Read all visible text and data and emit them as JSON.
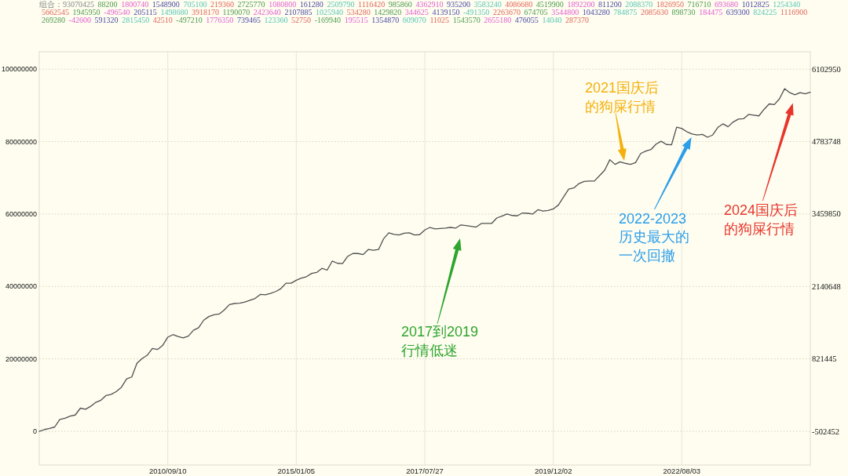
{
  "chart_data": {
    "type": "line",
    "title": "组合：93070425 88200 1800740 1548900 705100 219360 2725770 1080800 161280 2509790 1116420 985860 4362910 935200 3583240 4086680 4519900 1892200 811200 2088370 1826950 716710 693680 1012825 1254340 5662545 1945950 -496540 205115 1498680 3918170 1190070 2423640 2107885 1025940 534280 1429820 344625 4139150 -491350 2263670 674705 3544800 1043280 784875 2085630 898730 184475 639300 824225 1116900 269280 -42600 591320 2815450 42510 -497210 1776350 739465 123360 52750 -169940 195515 1354870 609070 11025 1543570 2655180 476055 14040 287370",
    "categories": [
      null,
      null,
      null,
      null,
      null,
      null,
      null,
      null,
      null,
      null,
      null,
      null,
      null,
      null,
      null,
      null,
      null,
      null,
      null,
      null,
      null,
      null,
      null,
      null,
      null,
      "2010/09/10",
      null,
      null,
      null,
      null,
      null,
      null,
      null,
      null,
      null,
      null,
      null,
      null,
      null,
      null,
      null,
      null,
      null,
      null,
      null,
      null,
      null,
      null,
      null,
      null,
      "2015/01/05",
      null,
      null,
      null,
      null,
      null,
      null,
      null,
      null,
      null,
      null,
      null,
      null,
      null,
      null,
      null,
      null,
      null,
      null,
      null,
      null,
      null,
      null,
      null,
      null,
      "2017/07/27",
      null,
      null,
      null,
      null,
      null,
      null,
      null,
      null,
      null,
      null,
      null,
      null,
      null,
      null,
      null,
      null,
      null,
      null,
      null,
      null,
      null,
      null,
      null,
      null,
      "2019/12/02",
      null,
      null,
      null,
      null,
      null,
      null,
      null,
      null,
      null,
      null,
      null,
      null,
      null,
      null,
      null,
      null,
      null,
      null,
      null,
      null,
      null,
      null,
      null,
      null,
      "2022/08/03",
      null,
      null,
      null,
      null,
      null,
      null,
      null,
      null,
      null,
      null,
      null,
      null,
      null,
      null,
      null,
      null,
      null,
      null,
      null,
      null,
      null,
      null,
      null,
      null,
      null
    ],
    "series": [
      {
        "color": "#505050",
        "values": [
          0,
          500000,
          800000,
          1200000,
          3300000,
          3600000,
          4200000,
          4500000,
          6400000,
          6100000,
          6900000,
          8000000,
          8600000,
          9900000,
          10200000,
          11000000,
          12200000,
          14500000,
          15000000,
          18800000,
          20100000,
          21000000,
          22900000,
          22600000,
          23700000,
          26000000,
          26700000,
          26200000,
          25800000,
          26300000,
          27900000,
          28600000,
          30700000,
          31700000,
          32200000,
          32400000,
          33500000,
          35000000,
          35300000,
          35400000,
          35700000,
          36200000,
          36700000,
          37800000,
          37700000,
          38100000,
          38600000,
          39400000,
          40900000,
          40900000,
          41700000,
          42300000,
          42700000,
          43600000,
          43900000,
          45000000,
          44500000,
          47000000,
          46400000,
          46300000,
          48300000,
          49100000,
          49100000,
          48800000,
          50200000,
          50000000,
          50200000,
          53200000,
          54800000,
          54400000,
          54200000,
          54700000,
          54800000,
          54200000,
          54300000,
          55600000,
          56300000,
          55900000,
          56000000,
          56100000,
          56300000,
          56100000,
          57000000,
          56800000,
          56600000,
          56400000,
          57400000,
          57400000,
          57400000,
          58900000,
          59400000,
          60000000,
          59600000,
          59500000,
          60300000,
          60200000,
          60000000,
          61200000,
          60800000,
          61000000,
          61400000,
          62500000,
          64700000,
          66900000,
          67200000,
          68400000,
          69000000,
          69100000,
          69100000,
          70600000,
          72100000,
          75000000,
          73700000,
          74400000,
          74000000,
          73700000,
          74200000,
          76700000,
          77400000,
          77800000,
          79300000,
          80100000,
          79200000,
          79100000,
          84000000,
          83600000,
          82700000,
          82100000,
          81800000,
          82000000,
          81200000,
          81800000,
          83900000,
          84900000,
          84100000,
          85400000,
          86200000,
          86300000,
          87500000,
          87300000,
          87100000,
          88900000,
          90400000,
          90200000,
          91800000,
          94600000,
          93500000,
          92900000,
          93500000,
          93200000,
          93600000
        ]
      }
    ],
    "ylim": [
      -9300000,
      104800000
    ],
    "yticks": [
      0,
      20000000,
      40000000,
      60000000,
      80000000,
      100000000
    ],
    "y2lim": [
      -1116754,
      6420009
    ],
    "y2ticks": [
      -502452,
      821445,
      2140648,
      3459850,
      4783748,
      6102950
    ],
    "grid": true,
    "annotations": [
      "2017到2019行情低迷",
      "2021国庆后的狗屎行情",
      "2022-2023历史最大的一次回撤",
      "2024国庆后的狗屎行情"
    ]
  }
}
